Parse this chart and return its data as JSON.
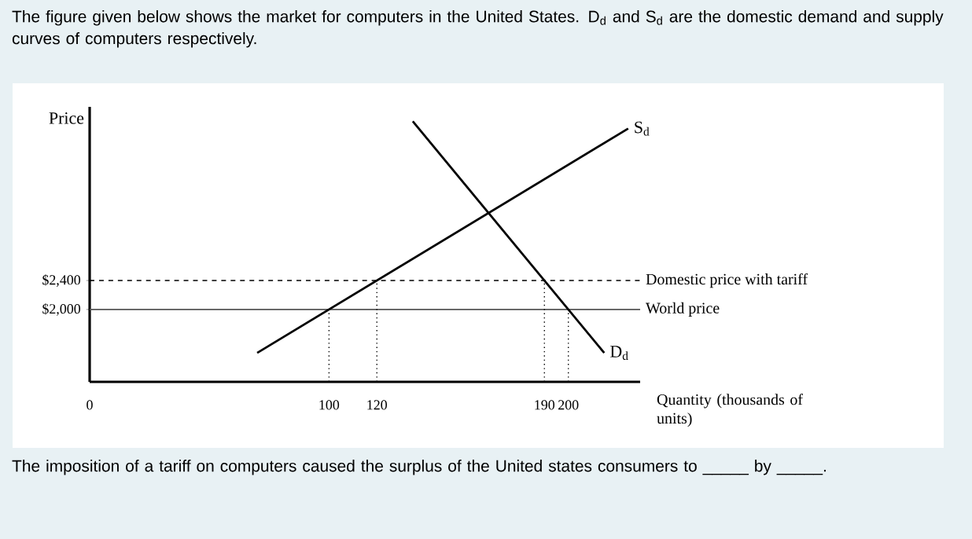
{
  "chart_data": {
    "type": "line",
    "title": "The figure given below shows the market for computers in the United States. D$_{d}$ and S$_{d}$ are the domestic demand and supply curves of computers respectively.",
    "ylabel": "Price",
    "xlabel": "Quantity (thousands of units)",
    "annotations": [
      "The imposition of a tariff on computers caused the surplus of the United states consumers to _____ by _____."
    ],
    "xlim": [
      0,
      230
    ],
    "ylim": [
      1000,
      4800
    ],
    "xticks": [
      0,
      100,
      120,
      190,
      200
    ],
    "yticks": [
      {
        "value": 2000,
        "label": "$2,000"
      },
      {
        "value": 2400,
        "label": "$2,400"
      }
    ],
    "marker": "none",
    "line_style": "solid",
    "series": [
      {
        "name": "S$_{d}$",
        "color": "#000000",
        "x": [
          70,
          225
        ],
        "values": [
          1400,
          4500
        ]
      },
      {
        "name": "D$_{d}$",
        "color": "#000000",
        "x": [
          135,
          215
        ],
        "values": [
          4600,
          1400
        ]
      },
      {
        "color": "#000000",
        "line_style": "dotted",
        "x": [
          100,
          100
        ],
        "values": [
          1000,
          2000
        ]
      },
      {
        "color": "#000000",
        "line_style": "dotted",
        "x": [
          120,
          120
        ],
        "values": [
          1000,
          2400
        ]
      },
      {
        "color": "#000000",
        "line_style": "dotted",
        "x": [
          190,
          190
        ],
        "values": [
          1000,
          2400
        ]
      },
      {
        "color": "#000000",
        "line_style": "dotted",
        "x": [
          200,
          200
        ],
        "values": [
          1000,
          2000
        ]
      }
    ],
    "ref_lines": [
      {
        "axis": "y",
        "value": 2400,
        "label": "Domestic price with tariff",
        "color": "#000000",
        "line_style": "dashed"
      },
      {
        "axis": "y",
        "value": 2000,
        "label": "World price",
        "color": "#555555",
        "line_style": "solid"
      }
    ]
  }
}
